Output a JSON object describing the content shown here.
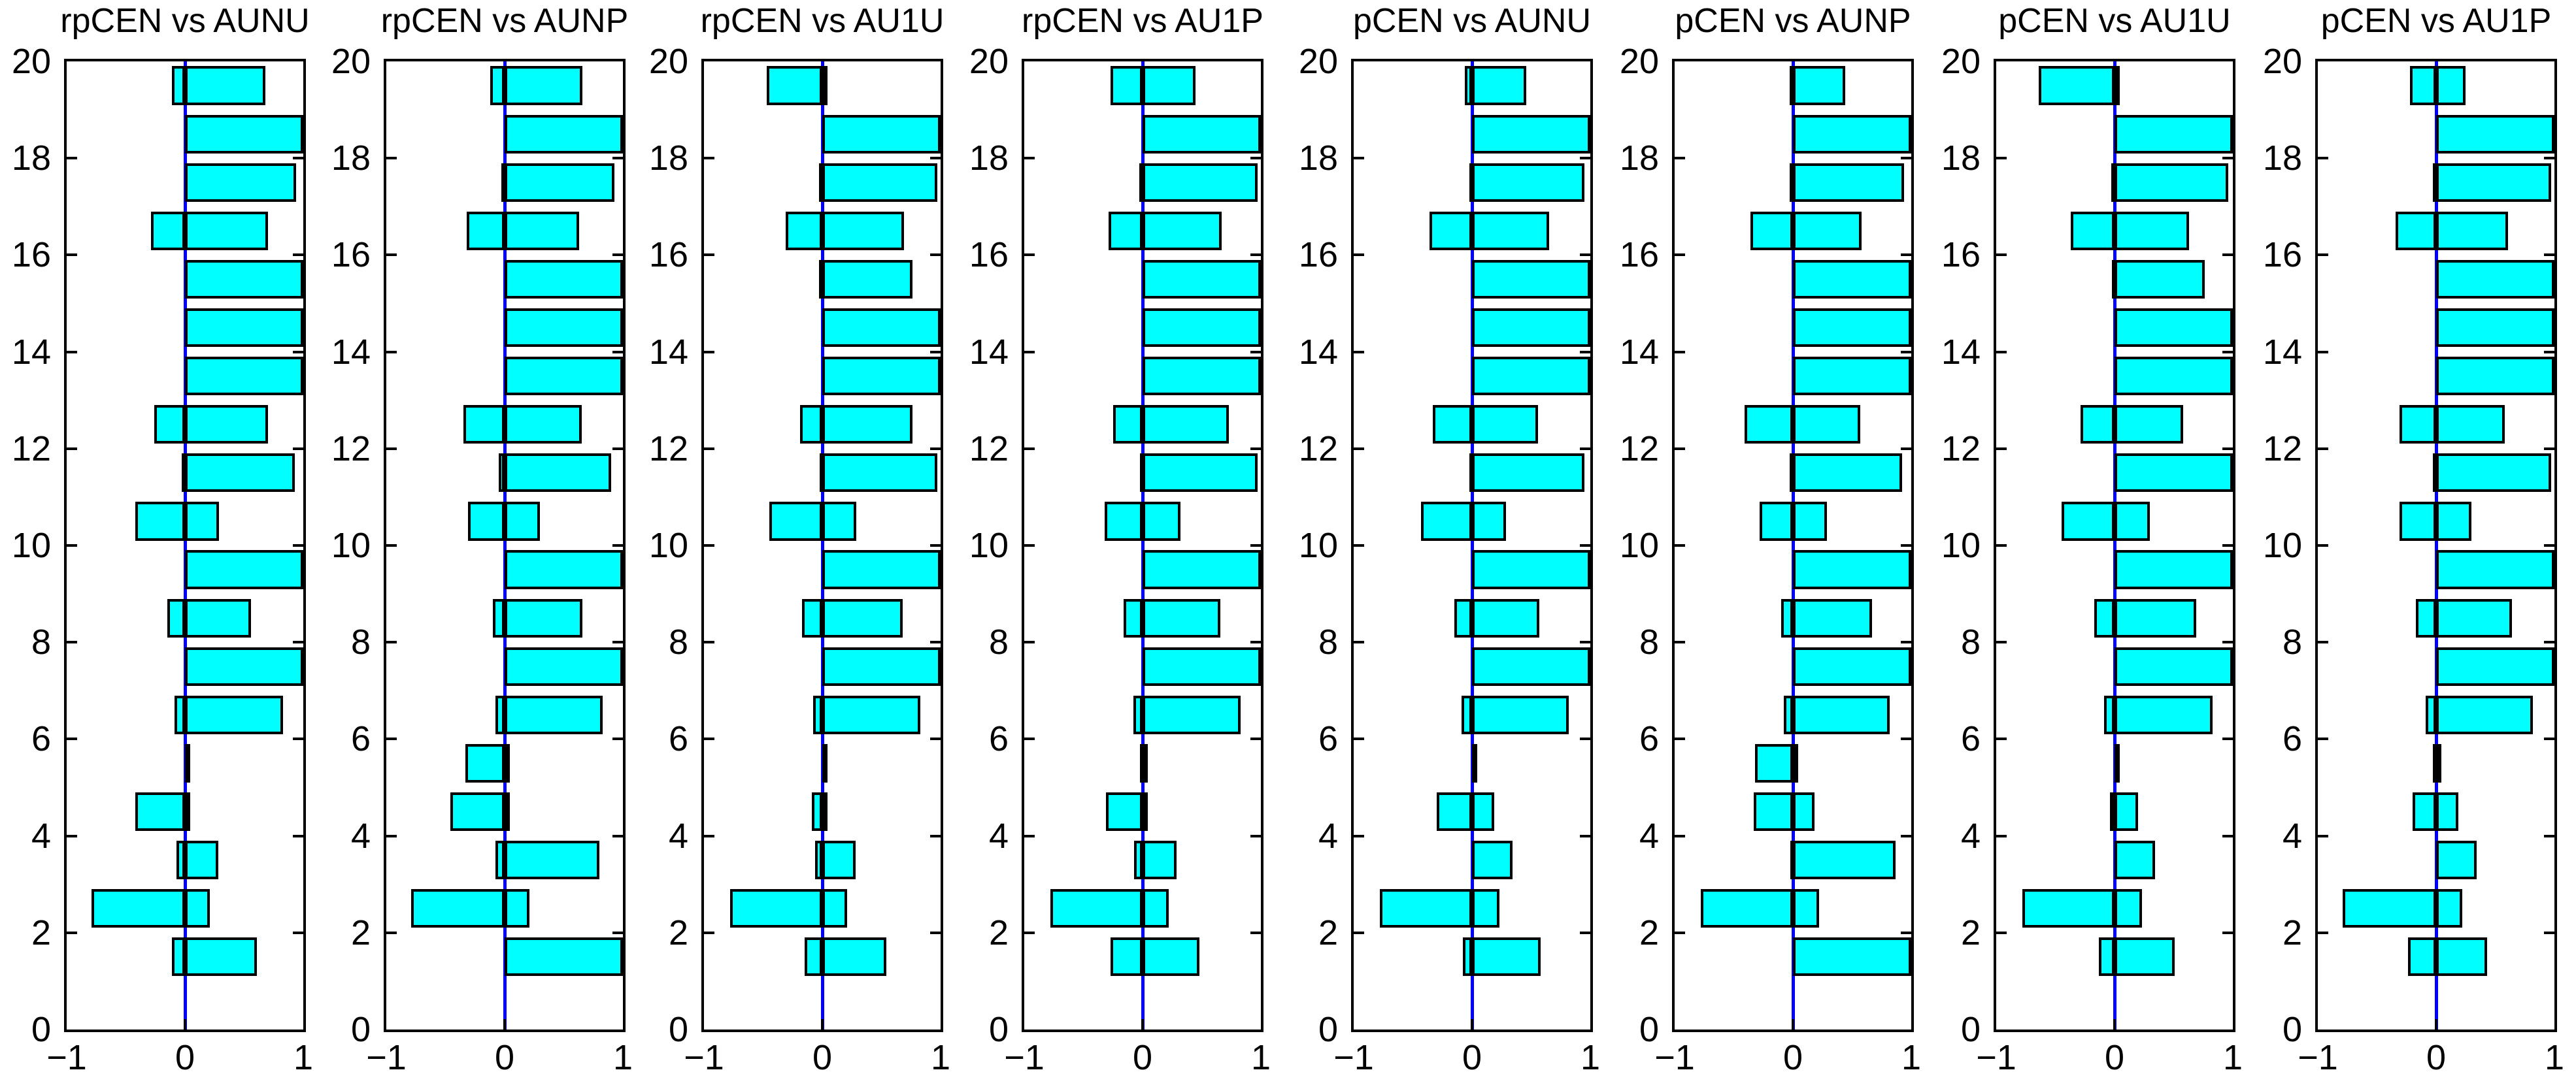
{
  "figure": {
    "background": "#FFFFFF"
  },
  "colors": {
    "bar_fill": "#00FFFF",
    "bar_edge": "#000000",
    "zero_line": "#0000FF",
    "axis": "#000000",
    "text": "#000000",
    "background": "#FFFFFF"
  },
  "chart_data": {
    "type": "barh",
    "xlim": [
      -1,
      1
    ],
    "ylim": [
      0,
      20
    ],
    "x_tick_labels": [
      "−1",
      "0",
      "1"
    ],
    "x_tick_values": [
      -1,
      0,
      1
    ],
    "y_tick_values": [
      0,
      2,
      4,
      6,
      8,
      10,
      12,
      14,
      16,
      18,
      20
    ],
    "grid": false,
    "legend": null,
    "bar_width": 0.8,
    "bar_centers": [
      1.5,
      2.5,
      3.5,
      4.5,
      5.5,
      6.5,
      7.5,
      8.5,
      9.5,
      10.5,
      11.5,
      12.5,
      13.5,
      14.5,
      15.5,
      16.5,
      17.5,
      18.5,
      19.5
    ],
    "series_note": "each bar entry is [negative_extent, positive_extent] about x=0, ordered bottom (y=1.5) to top (y=19.5)",
    "charts": [
      {
        "title": "rpCEN vs AUNU",
        "bars": [
          [
            -0.11,
            0.61
          ],
          [
            -0.79,
            0.21
          ],
          [
            -0.07,
            0.28
          ],
          [
            -0.42,
            0.03
          ],
          [
            0,
            0.03
          ],
          [
            -0.09,
            0.83
          ],
          [
            0,
            1.0
          ],
          [
            -0.15,
            0.56
          ],
          [
            0,
            1.0
          ],
          [
            -0.42,
            0.29
          ],
          [
            -0.03,
            0.93
          ],
          [
            -0.26,
            0.7
          ],
          [
            0,
            1.0
          ],
          [
            0,
            1.0
          ],
          [
            0,
            1.0
          ],
          [
            -0.29,
            0.7
          ],
          [
            0,
            0.94
          ],
          [
            0,
            1.0
          ],
          [
            -0.11,
            0.68
          ]
        ]
      },
      {
        "title": "rpCEN vs AUNP",
        "bars": [
          [
            0,
            1.0
          ],
          [
            -0.79,
            0.21
          ],
          [
            -0.08,
            0.8
          ],
          [
            -0.46,
            0.04
          ],
          [
            -0.33,
            0.03
          ],
          [
            -0.08,
            0.83
          ],
          [
            0,
            1.0
          ],
          [
            -0.1,
            0.66
          ],
          [
            0,
            1.0
          ],
          [
            -0.31,
            0.3
          ],
          [
            -0.05,
            0.9
          ],
          [
            -0.35,
            0.65
          ],
          [
            0,
            1.0
          ],
          [
            0,
            1.0
          ],
          [
            0,
            1.0
          ],
          [
            -0.32,
            0.63
          ],
          [
            -0.03,
            0.93
          ],
          [
            0,
            1.0
          ],
          [
            -0.12,
            0.66
          ]
        ]
      },
      {
        "title": "rpCEN vs AU1U",
        "bars": [
          [
            -0.15,
            0.54
          ],
          [
            -0.78,
            0.21
          ],
          [
            -0.06,
            0.28
          ],
          [
            -0.09,
            0.04
          ],
          [
            0,
            0.03
          ],
          [
            -0.08,
            0.83
          ],
          [
            0,
            1.0
          ],
          [
            -0.17,
            0.68
          ],
          [
            0,
            1.0
          ],
          [
            -0.45,
            0.29
          ],
          [
            -0.02,
            0.97
          ],
          [
            -0.19,
            0.76
          ],
          [
            0,
            1.0
          ],
          [
            0,
            1.0
          ],
          [
            -0.03,
            0.76
          ],
          [
            -0.31,
            0.69
          ],
          [
            -0.03,
            0.97
          ],
          [
            0,
            1.0
          ],
          [
            -0.47,
            0.03
          ]
        ]
      },
      {
        "title": "rpCEN vs AU1P",
        "bars": [
          [
            -0.27,
            0.48
          ],
          [
            -0.78,
            0.22
          ],
          [
            -0.07,
            0.29
          ],
          [
            -0.31,
            0.04
          ],
          [
            -0.02,
            0.03
          ],
          [
            -0.08,
            0.83
          ],
          [
            0,
            1.0
          ],
          [
            -0.16,
            0.66
          ],
          [
            0,
            1.0
          ],
          [
            -0.32,
            0.32
          ],
          [
            -0.02,
            0.97
          ],
          [
            -0.25,
            0.73
          ],
          [
            0,
            1.0
          ],
          [
            0,
            1.0
          ],
          [
            0,
            1.0
          ],
          [
            -0.29,
            0.67
          ],
          [
            -0.03,
            0.97
          ],
          [
            0,
            1.0
          ],
          [
            -0.27,
            0.45
          ]
        ]
      },
      {
        "title": "pCEN vs AUNU",
        "bars": [
          [
            -0.08,
            0.58
          ],
          [
            -0.78,
            0.23
          ],
          [
            0,
            0.34
          ],
          [
            -0.3,
            0.19
          ],
          [
            0,
            0.03
          ],
          [
            -0.09,
            0.82
          ],
          [
            0,
            1.0
          ],
          [
            -0.15,
            0.57
          ],
          [
            0,
            1.0
          ],
          [
            -0.43,
            0.29
          ],
          [
            -0.02,
            0.95
          ],
          [
            -0.33,
            0.56
          ],
          [
            0,
            1.0
          ],
          [
            0,
            1.0
          ],
          [
            0,
            1.0
          ],
          [
            -0.36,
            0.65
          ],
          [
            -0.02,
            0.95
          ],
          [
            0,
            1.0
          ],
          [
            -0.06,
            0.46
          ]
        ]
      },
      {
        "title": "pCEN vs AUNP",
        "bars": [
          [
            0,
            1.0
          ],
          [
            -0.78,
            0.22
          ],
          [
            -0.02,
            0.87
          ],
          [
            -0.33,
            0.18
          ],
          [
            -0.32,
            0.04
          ],
          [
            -0.08,
            0.82
          ],
          [
            0,
            1.0
          ],
          [
            -0.1,
            0.67
          ],
          [
            0,
            1.0
          ],
          [
            -0.28,
            0.29
          ],
          [
            -0.03,
            0.92
          ],
          [
            -0.41,
            0.57
          ],
          [
            0,
            1.0
          ],
          [
            0,
            1.0
          ],
          [
            0,
            1.0
          ],
          [
            -0.36,
            0.58
          ],
          [
            -0.03,
            0.94
          ],
          [
            0,
            1.0
          ],
          [
            -0.03,
            0.44
          ]
        ]
      },
      {
        "title": "pCEN vs AU1U",
        "bars": [
          [
            -0.13,
            0.51
          ],
          [
            -0.78,
            0.23
          ],
          [
            0,
            0.34
          ],
          [
            -0.04,
            0.2
          ],
          [
            0,
            0.03
          ],
          [
            -0.09,
            0.83
          ],
          [
            0,
            1.0
          ],
          [
            -0.17,
            0.69
          ],
          [
            0,
            1.0
          ],
          [
            -0.45,
            0.3
          ],
          [
            0,
            1.0
          ],
          [
            -0.29,
            0.58
          ],
          [
            0,
            1.0
          ],
          [
            0,
            1.0
          ],
          [
            -0.02,
            0.76
          ],
          [
            -0.37,
            0.63
          ],
          [
            -0.03,
            0.96
          ],
          [
            0,
            1.0
          ],
          [
            -0.64,
            0.03
          ]
        ]
      },
      {
        "title": "pCEN vs AU1P",
        "bars": [
          [
            -0.24,
            0.43
          ],
          [
            -0.79,
            0.22
          ],
          [
            0,
            0.34
          ],
          [
            -0.2,
            0.19
          ],
          [
            -0.03,
            0.03
          ],
          [
            -0.09,
            0.82
          ],
          [
            0,
            1.0
          ],
          [
            -0.17,
            0.64
          ],
          [
            0,
            1.0
          ],
          [
            -0.31,
            0.3
          ],
          [
            -0.03,
            0.97
          ],
          [
            -0.31,
            0.58
          ],
          [
            0,
            1.0
          ],
          [
            0,
            1.0
          ],
          [
            0,
            1.0
          ],
          [
            -0.34,
            0.61
          ],
          [
            -0.03,
            0.97
          ],
          [
            0,
            1.0
          ],
          [
            -0.22,
            0.25
          ]
        ]
      }
    ]
  }
}
